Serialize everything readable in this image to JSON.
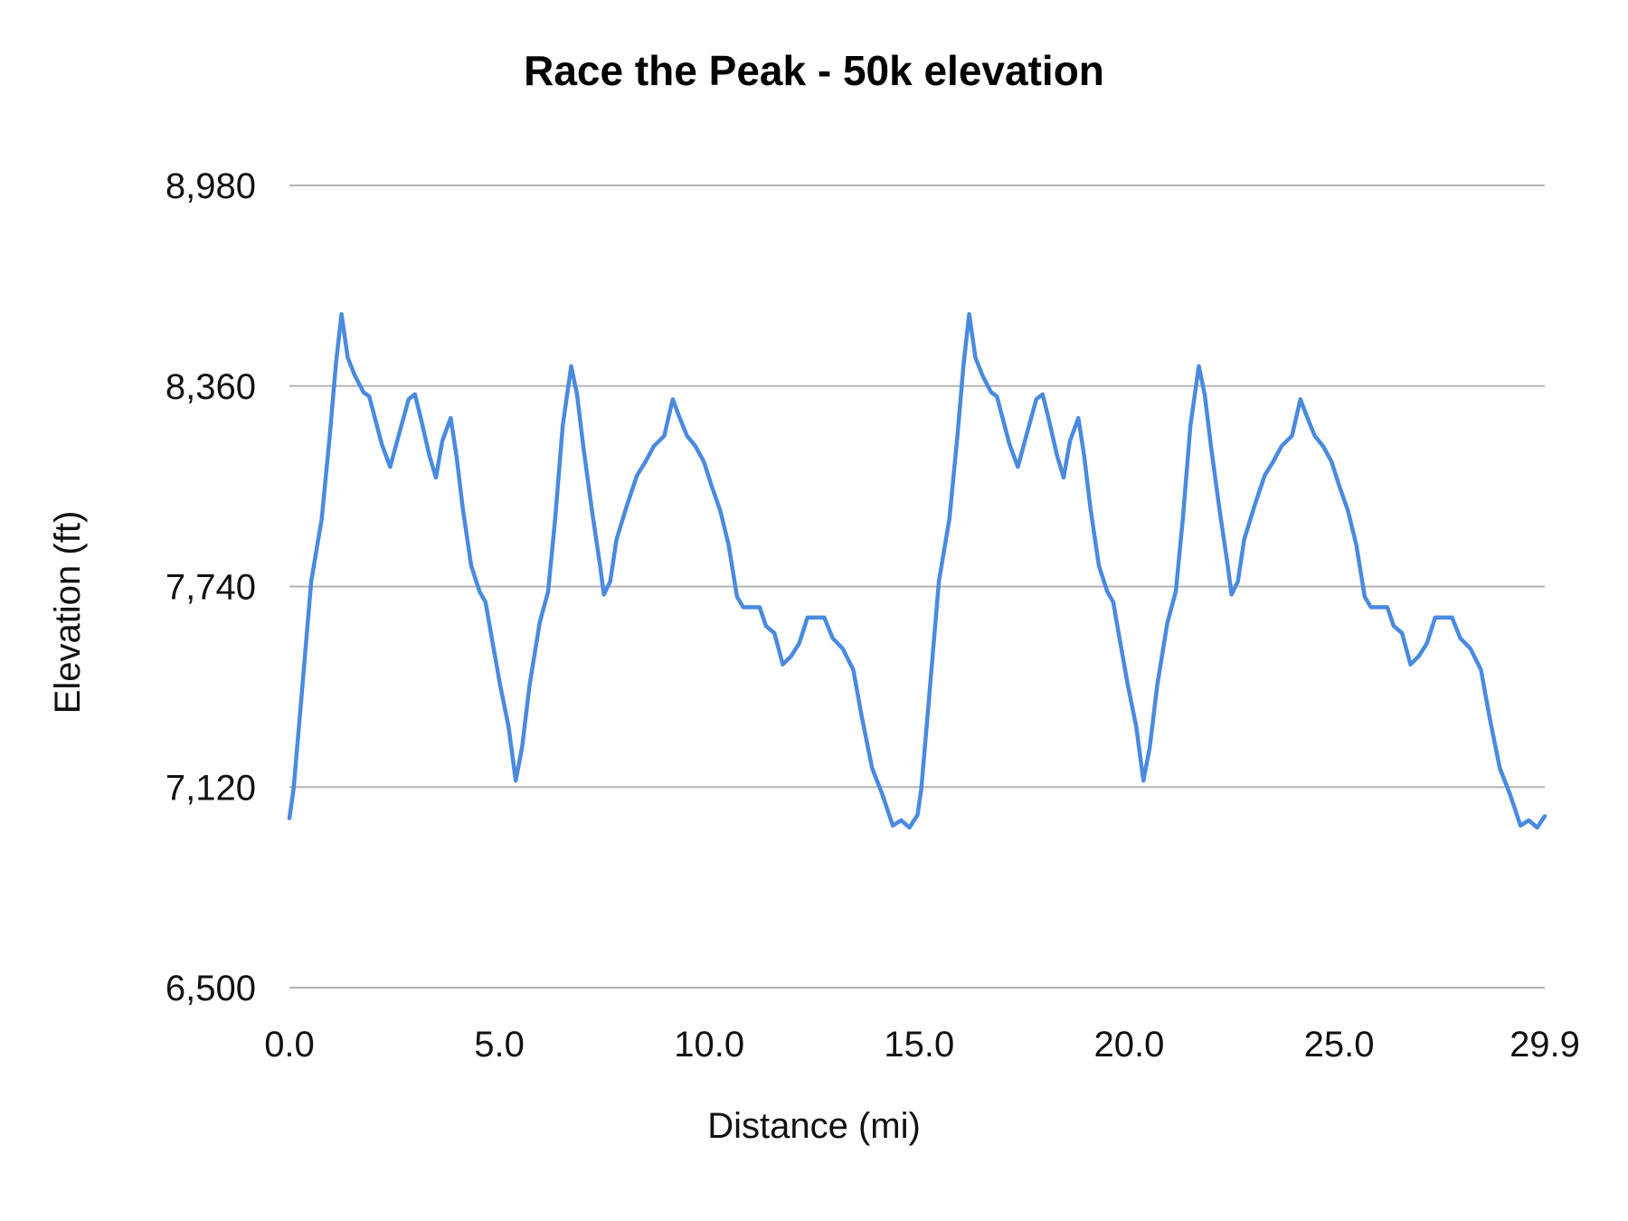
{
  "chart_data": {
    "type": "line",
    "title": "Race the Peak - 50k elevation",
    "xlabel": "Distance (mi)",
    "ylabel": "Elevation (ft)",
    "xlim": [
      0,
      29.9
    ],
    "ylim": [
      6500,
      8980
    ],
    "x_ticks": [
      "0.0",
      "5.0",
      "10.0",
      "15.0",
      "20.0",
      "25.0",
      "29.9"
    ],
    "x_tick_values": [
      0,
      5,
      10,
      15,
      20,
      25,
      29.9
    ],
    "y_ticks": [
      "8,980",
      "8,360",
      "7,740",
      "7,120",
      "6,500"
    ],
    "y_tick_values": [
      8980,
      8360,
      7740,
      7120,
      6500
    ],
    "grid": "horizontal",
    "legend": "none",
    "line_color": "#4a8ae0",
    "grid_color": "#b3b3b3",
    "series": [
      {
        "x": [
          0,
          0.1,
          0.27,
          0.52,
          0.77,
          0.96,
          1.11,
          1.24,
          1.39,
          1.56,
          1.76,
          1.9,
          2.05,
          2.2,
          2.4,
          2.6,
          2.84,
          2.99,
          3.14,
          3.34,
          3.49,
          3.64,
          3.84,
          3.98,
          4.13,
          4.33,
          4.53,
          4.67,
          4.82,
          5.02,
          5.22,
          5.39,
          5.54,
          5.72,
          5.96,
          6.16,
          6.33,
          6.51,
          6.71,
          6.85,
          7.0,
          7.2,
          7.4,
          7.49,
          7.64,
          7.79,
          8.04,
          8.28,
          8.48,
          8.68,
          8.93,
          9.13,
          9.27,
          9.47,
          9.67,
          9.87,
          10.07,
          10.26,
          10.46,
          10.66,
          10.81,
          11.01,
          11.2,
          11.35,
          11.55,
          11.75,
          11.95,
          12.14,
          12.34,
          12.74,
          12.94,
          13.18,
          13.43,
          13.63,
          13.88,
          14.12,
          14.37,
          14.57,
          14.77,
          14.96,
          15.05,
          15.22,
          15.47,
          15.72,
          15.91,
          16.06,
          16.19,
          16.34,
          16.51,
          16.71,
          16.85,
          17.0,
          17.15,
          17.35,
          17.55,
          17.79,
          17.94,
          18.09,
          18.29,
          18.44,
          18.59,
          18.79,
          18.93,
          19.08,
          19.28,
          19.48,
          19.62,
          19.77,
          19.97,
          20.17,
          20.34,
          20.49,
          20.67,
          20.91,
          21.11,
          21.28,
          21.46,
          21.66,
          21.8,
          21.95,
          22.15,
          22.35,
          22.44,
          22.59,
          22.74,
          22.99,
          23.23,
          23.43,
          23.63,
          23.88,
          24.08,
          24.22,
          24.42,
          24.62,
          24.82,
          25.02,
          25.21,
          25.41,
          25.61,
          25.76,
          25.96,
          26.15,
          26.3,
          26.5,
          26.7,
          26.9,
          27.09,
          27.29,
          27.69,
          27.89,
          28.13,
          28.38,
          28.58,
          28.83,
          29.07,
          29.32,
          29.52,
          29.72,
          29.9
        ],
        "y": [
          7024,
          7114,
          7371,
          7756,
          7949,
          8206,
          8431,
          8582,
          8447,
          8392,
          8341,
          8328,
          8254,
          8180,
          8110,
          8206,
          8319,
          8334,
          8254,
          8142,
          8077,
          8190,
          8261,
          8142,
          7981,
          7804,
          7724,
          7692,
          7580,
          7435,
          7307,
          7140,
          7242,
          7435,
          7628,
          7724,
          7949,
          8238,
          8421,
          8334,
          8174,
          7981,
          7804,
          7715,
          7756,
          7885,
          7991,
          8084,
          8126,
          8174,
          8206,
          8319,
          8270,
          8206,
          8174,
          8126,
          8045,
          7975,
          7869,
          7708,
          7676,
          7676,
          7676,
          7618,
          7596,
          7499,
          7525,
          7564,
          7644,
          7644,
          7580,
          7548,
          7483,
          7339,
          7178,
          7098,
          7001,
          7017,
          6995,
          7034,
          7114,
          7371,
          7756,
          7949,
          8206,
          8431,
          8582,
          8447,
          8392,
          8341,
          8328,
          8254,
          8180,
          8110,
          8206,
          8319,
          8334,
          8254,
          8142,
          8077,
          8190,
          8261,
          8142,
          7981,
          7804,
          7724,
          7692,
          7580,
          7435,
          7307,
          7140,
          7242,
          7435,
          7628,
          7724,
          7949,
          8238,
          8421,
          8334,
          8174,
          7981,
          7804,
          7715,
          7756,
          7885,
          7991,
          8084,
          8126,
          8174,
          8206,
          8319,
          8270,
          8206,
          8174,
          8126,
          8045,
          7975,
          7869,
          7708,
          7676,
          7676,
          7676,
          7618,
          7596,
          7499,
          7525,
          7564,
          7644,
          7644,
          7580,
          7548,
          7483,
          7339,
          7178,
          7098,
          7001,
          7017,
          6995,
          7030
        ]
      }
    ]
  }
}
